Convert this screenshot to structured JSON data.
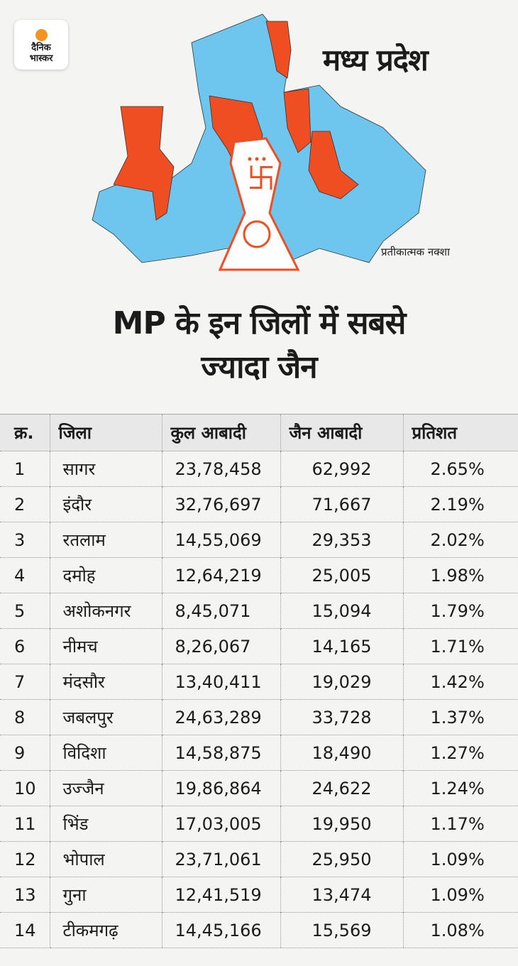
{
  "logo": {
    "line1": "दैनिक",
    "line2": "भास्कर"
  },
  "map": {
    "title": "मध्य प्रदेश",
    "note": "प्रतीकात्मक नक्शा",
    "colors": {
      "highlight": "#ef4e23",
      "other": "#6ec6ee"
    }
  },
  "headline": {
    "line1": "MP के इन जिलों में सबसे",
    "line2": "ज्यादा जैन"
  },
  "table": {
    "headers": [
      "क्र.",
      "जिला",
      "कुल आबादी",
      "जैन आबादी",
      "प्रतिशत"
    ],
    "rows": [
      [
        "1",
        "सागर",
        "23,78,458",
        "62,992",
        "2.65%"
      ],
      [
        "2",
        "इंदौर",
        "32,76,697",
        "71,667",
        "2.19%"
      ],
      [
        "3",
        "रतलाम",
        "14,55,069",
        "29,353",
        "2.02%"
      ],
      [
        "4",
        "दमोह",
        "12,64,219",
        "25,005",
        "1.98%"
      ],
      [
        "5",
        "अशोकनगर",
        "8,45,071",
        "15,094",
        "1.79%"
      ],
      [
        "6",
        "नीमच",
        "8,26,067",
        "14,165",
        "1.71%"
      ],
      [
        "7",
        "मंदसौर",
        "13,40,411",
        "19,029",
        "1.42%"
      ],
      [
        "8",
        "जबलपुर",
        "24,63,289",
        "33,728",
        "1.37%"
      ],
      [
        "9",
        "विदिशा",
        "14,58,875",
        "18,490",
        "1.27%"
      ],
      [
        "10",
        "उज्जैन",
        "19,86,864",
        "24,622",
        "1.24%"
      ],
      [
        "11",
        "भिंड",
        "17,03,005",
        "19,950",
        "1.17%"
      ],
      [
        "12",
        "भोपाल",
        "23,71,061",
        "25,950",
        "1.09%"
      ],
      [
        "13",
        "गुना",
        "12,41,519",
        "13,474",
        "1.09%"
      ],
      [
        "14",
        "टीकमगढ़",
        "14,45,166",
        "15,569",
        "1.08%"
      ]
    ]
  }
}
